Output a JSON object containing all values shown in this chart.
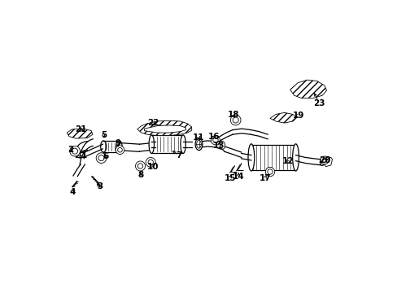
{
  "background_color": "#ffffff",
  "line_color": "#000000",
  "fig_width": 4.89,
  "fig_height": 3.6,
  "dpi": 100,
  "callouts": {
    "1": {
      "lpos": [
        0.1,
        0.47
      ],
      "apos": [
        0.1,
        0.455
      ]
    },
    "2": {
      "lpos": [
        0.052,
        0.49
      ],
      "apos": [
        0.068,
        0.478
      ]
    },
    "3": {
      "lpos": [
        0.155,
        0.36
      ],
      "apos": [
        0.138,
        0.378
      ]
    },
    "4": {
      "lpos": [
        0.06,
        0.34
      ],
      "apos": [
        0.075,
        0.355
      ]
    },
    "5": {
      "lpos": [
        0.168,
        0.54
      ],
      "apos": [
        0.175,
        0.523
      ]
    },
    "6": {
      "lpos": [
        0.175,
        0.465
      ],
      "apos": [
        0.168,
        0.458
      ]
    },
    "7": {
      "lpos": [
        0.43,
        0.47
      ],
      "apos": [
        0.4,
        0.49
      ]
    },
    "8": {
      "lpos": [
        0.296,
        0.402
      ],
      "apos": [
        0.296,
        0.418
      ]
    },
    "9": {
      "lpos": [
        0.218,
        0.512
      ],
      "apos": [
        0.218,
        0.498
      ]
    },
    "10": {
      "lpos": [
        0.34,
        0.428
      ],
      "apos": [
        0.33,
        0.44
      ]
    },
    "11": {
      "lpos": [
        0.5,
        0.53
      ],
      "apos": [
        0.505,
        0.515
      ]
    },
    "12": {
      "lpos": [
        0.81,
        0.448
      ],
      "apos": [
        0.795,
        0.46
      ]
    },
    "13": {
      "lpos": [
        0.57,
        0.502
      ],
      "apos": [
        0.575,
        0.515
      ]
    },
    "14": {
      "lpos": [
        0.638,
        0.395
      ],
      "apos": [
        0.638,
        0.41
      ]
    },
    "15": {
      "lpos": [
        0.608,
        0.39
      ],
      "apos": [
        0.614,
        0.403
      ]
    },
    "16": {
      "lpos": [
        0.552,
        0.535
      ],
      "apos": [
        0.562,
        0.522
      ]
    },
    "17": {
      "lpos": [
        0.73,
        0.39
      ],
      "apos": [
        0.74,
        0.408
      ]
    },
    "18": {
      "lpos": [
        0.62,
        0.61
      ],
      "apos": [
        0.628,
        0.592
      ]
    },
    "19": {
      "lpos": [
        0.848,
        0.608
      ],
      "apos": [
        0.825,
        0.602
      ]
    },
    "20": {
      "lpos": [
        0.94,
        0.452
      ],
      "apos": [
        0.958,
        0.458
      ]
    },
    "21": {
      "lpos": [
        0.088,
        0.56
      ],
      "apos": [
        0.105,
        0.552
      ]
    },
    "22": {
      "lpos": [
        0.34,
        0.582
      ],
      "apos": [
        0.348,
        0.565
      ]
    },
    "23": {
      "lpos": [
        0.918,
        0.65
      ],
      "apos": [
        0.898,
        0.695
      ]
    }
  }
}
